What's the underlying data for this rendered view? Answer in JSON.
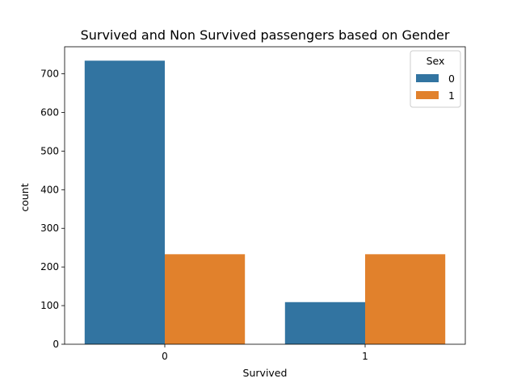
{
  "chart_data": {
    "type": "bar",
    "title": "Survived and Non Survived passengers based on Gender",
    "xlabel": "Survived",
    "ylabel": "count",
    "categories": [
      "0",
      "1"
    ],
    "ylim": [
      0,
      770
    ],
    "yticks": [
      0,
      100,
      200,
      300,
      400,
      500,
      600,
      700
    ],
    "grid": false,
    "legend": {
      "title": "Sex",
      "placement": "top-right"
    },
    "series": [
      {
        "name": "0",
        "color": "#3274a1",
        "values": [
          734,
          109
        ]
      },
      {
        "name": "1",
        "color": "#e1812c",
        "values": [
          233,
          233
        ]
      }
    ]
  }
}
